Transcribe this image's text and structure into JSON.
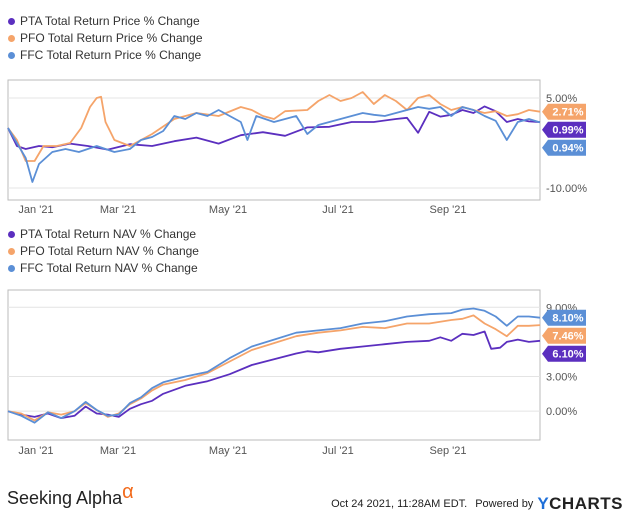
{
  "footer": {
    "brand": "Seeking Alpha",
    "brand_symbol": "α",
    "timestamp": "Oct 24 2021, 11:28AM EDT.",
    "powered_by": "Powered by",
    "provider_y": "Y",
    "provider_rest": "CHARTS"
  },
  "colors": {
    "PTA": "#5b2fbf",
    "PFO": "#f5a46a",
    "FFC": "#5b8fd6"
  },
  "chart_data": [
    {
      "type": "line",
      "legend_placement": "top-left",
      "grid": "horizontal",
      "x_ticks": [
        "Jan '21",
        "Mar '21",
        "May '21",
        "Jul '21",
        "Sep '21"
      ],
      "y_ticks": [
        "5.00%",
        "-10.00%"
      ],
      "ylim": [
        -12,
        8
      ],
      "end_labels": [
        "2.71%",
        "0.99%",
        "0.94%"
      ],
      "series": [
        {
          "name": "PTA Total Return Price % Change",
          "key": "PTA",
          "end_value": 0.99,
          "points": [
            [
              0,
              0
            ],
            [
              4,
              -3
            ],
            [
              8,
              -3.5
            ],
            [
              14,
              -3
            ],
            [
              20,
              -3.2
            ],
            [
              28,
              -2.6
            ],
            [
              36,
              -3
            ],
            [
              45,
              -3.6
            ],
            [
              55,
              -2.7
            ],
            [
              65,
              -3
            ],
            [
              75,
              -2.2
            ],
            [
              85,
              -1.6
            ],
            [
              95,
              -2.6
            ],
            [
              105,
              -1.2
            ],
            [
              115,
              -0.7
            ],
            [
              125,
              -1.3
            ],
            [
              135,
              0.1
            ],
            [
              145,
              0.2
            ],
            [
              155,
              1
            ],
            [
              165,
              1
            ],
            [
              175,
              1.5
            ],
            [
              180,
              1.7
            ],
            [
              185,
              -0.8
            ],
            [
              190,
              2.7
            ],
            [
              195,
              1.9
            ],
            [
              200,
              2.2
            ],
            [
              205,
              3
            ],
            [
              210,
              2.5
            ],
            [
              215,
              3.6
            ],
            [
              220,
              2.8
            ],
            [
              225,
              1
            ],
            [
              230,
              1.5
            ],
            [
              235,
              1.1
            ],
            [
              240,
              0.99
            ]
          ]
        },
        {
          "name": "PFO Total Return Price % Change",
          "key": "PFO",
          "end_value": 2.71,
          "points": [
            [
              0,
              0
            ],
            [
              4,
              -2
            ],
            [
              8,
              -5.5
            ],
            [
              12,
              -5.5
            ],
            [
              16,
              -3
            ],
            [
              22,
              -3
            ],
            [
              28,
              -2.5
            ],
            [
              33,
              0
            ],
            [
              37,
              3.5
            ],
            [
              40,
              5
            ],
            [
              42,
              5.2
            ],
            [
              44,
              1
            ],
            [
              46,
              -0.5
            ],
            [
              48,
              -2
            ],
            [
              55,
              -3
            ],
            [
              65,
              -1
            ],
            [
              75,
              1.5
            ],
            [
              85,
              2.5
            ],
            [
              95,
              2
            ],
            [
              105,
              3.5
            ],
            [
              110,
              3
            ],
            [
              115,
              2
            ],
            [
              120,
              1.5
            ],
            [
              125,
              2.8
            ],
            [
              135,
              3
            ],
            [
              140,
              4.5
            ],
            [
              145,
              5.5
            ],
            [
              150,
              4.5
            ],
            [
              155,
              5
            ],
            [
              160,
              6
            ],
            [
              165,
              4
            ],
            [
              170,
              5.5
            ],
            [
              175,
              4.5
            ],
            [
              180,
              3
            ],
            [
              185,
              5
            ],
            [
              190,
              5.5
            ],
            [
              195,
              4
            ],
            [
              200,
              3
            ],
            [
              205,
              3.5
            ],
            [
              210,
              3
            ],
            [
              215,
              2.5
            ],
            [
              220,
              2.8
            ],
            [
              225,
              2
            ],
            [
              230,
              2.3
            ],
            [
              235,
              3
            ],
            [
              240,
              2.71
            ]
          ]
        },
        {
          "name": "FFC Total Return Price % Change",
          "key": "FFC",
          "end_value": 0.94,
          "points": [
            [
              0,
              0
            ],
            [
              4,
              -2.5
            ],
            [
              8,
              -5
            ],
            [
              11,
              -9
            ],
            [
              14,
              -6
            ],
            [
              20,
              -4
            ],
            [
              26,
              -3.5
            ],
            [
              32,
              -4
            ],
            [
              40,
              -3
            ],
            [
              48,
              -4
            ],
            [
              55,
              -3.5
            ],
            [
              60,
              -2
            ],
            [
              65,
              -1.5
            ],
            [
              70,
              -0.5
            ],
            [
              75,
              2
            ],
            [
              80,
              1.5
            ],
            [
              85,
              2.5
            ],
            [
              90,
              2
            ],
            [
              95,
              3
            ],
            [
              100,
              2
            ],
            [
              105,
              1
            ],
            [
              108,
              -2
            ],
            [
              112,
              2
            ],
            [
              120,
              1
            ],
            [
              125,
              1.5
            ],
            [
              130,
              2
            ],
            [
              135,
              -1
            ],
            [
              140,
              0.5
            ],
            [
              145,
              1
            ],
            [
              150,
              1.5
            ],
            [
              155,
              2
            ],
            [
              160,
              2.5
            ],
            [
              165,
              2.2
            ],
            [
              170,
              2
            ],
            [
              175,
              2.5
            ],
            [
              180,
              3
            ],
            [
              185,
              3.5
            ],
            [
              190,
              3.2
            ],
            [
              195,
              3.5
            ],
            [
              200,
              2
            ],
            [
              205,
              3.5
            ],
            [
              210,
              3
            ],
            [
              215,
              2
            ],
            [
              220,
              1.2
            ],
            [
              225,
              -2
            ],
            [
              230,
              1
            ],
            [
              235,
              1.5
            ],
            [
              240,
              0.94
            ]
          ]
        }
      ]
    },
    {
      "type": "line",
      "legend_placement": "top-left",
      "grid": "horizontal",
      "x_ticks": [
        "Jan '21",
        "Mar '21",
        "May '21",
        "Jul '21",
        "Sep '21"
      ],
      "y_ticks": [
        "9.00%",
        "3.00%",
        "0.00%"
      ],
      "ylim": [
        -2.5,
        10.5
      ],
      "end_labels": [
        "8.10%",
        "7.46%",
        "6.10%"
      ],
      "series": [
        {
          "name": "PTA Total Return NAV % Change",
          "key": "PTA",
          "end_value": 6.1,
          "points": [
            [
              0,
              0
            ],
            [
              6,
              -0.3
            ],
            [
              12,
              -0.5
            ],
            [
              18,
              -0.2
            ],
            [
              24,
              -0.6
            ],
            [
              30,
              -0.4
            ],
            [
              35,
              0.4
            ],
            [
              40,
              -0.2
            ],
            [
              45,
              -0.3
            ],
            [
              50,
              -0.5
            ],
            [
              55,
              0.2
            ],
            [
              60,
              0.6
            ],
            [
              65,
              0.9
            ],
            [
              70,
              1.5
            ],
            [
              80,
              2.2
            ],
            [
              90,
              2.6
            ],
            [
              100,
              3.2
            ],
            [
              110,
              4
            ],
            [
              120,
              4.5
            ],
            [
              130,
              5
            ],
            [
              135,
              5.2
            ],
            [
              140,
              5.1
            ],
            [
              150,
              5.4
            ],
            [
              160,
              5.6
            ],
            [
              170,
              5.8
            ],
            [
              180,
              6
            ],
            [
              190,
              6.1
            ],
            [
              195,
              6.4
            ],
            [
              200,
              6.1
            ],
            [
              205,
              6.7
            ],
            [
              210,
              6.6
            ],
            [
              215,
              6.9
            ],
            [
              218,
              5.4
            ],
            [
              222,
              5.5
            ],
            [
              225,
              6
            ],
            [
              230,
              6.2
            ],
            [
              235,
              6
            ],
            [
              240,
              6.1
            ]
          ]
        },
        {
          "name": "PFO Total Return NAV % Change",
          "key": "PFO",
          "end_value": 7.46,
          "points": [
            [
              0,
              0
            ],
            [
              6,
              -0.2
            ],
            [
              12,
              -0.8
            ],
            [
              18,
              -0.1
            ],
            [
              24,
              -0.3
            ],
            [
              30,
              0
            ],
            [
              35,
              0.7
            ],
            [
              40,
              0.1
            ],
            [
              45,
              -0.5
            ],
            [
              50,
              -0.2
            ],
            [
              55,
              0.6
            ],
            [
              60,
              1.1
            ],
            [
              65,
              1.8
            ],
            [
              70,
              2.3
            ],
            [
              80,
              2.7
            ],
            [
              90,
              3.3
            ],
            [
              100,
              4.3
            ],
            [
              110,
              5.3
            ],
            [
              120,
              5.9
            ],
            [
              130,
              6.5
            ],
            [
              140,
              6.8
            ],
            [
              150,
              7
            ],
            [
              160,
              7.3
            ],
            [
              170,
              7.2
            ],
            [
              180,
              7.6
            ],
            [
              190,
              7.6
            ],
            [
              200,
              7.9
            ],
            [
              205,
              8
            ],
            [
              210,
              8.3
            ],
            [
              215,
              7.6
            ],
            [
              220,
              7.1
            ],
            [
              225,
              6.5
            ],
            [
              230,
              7.4
            ],
            [
              235,
              7.4
            ],
            [
              240,
              7.46
            ]
          ]
        },
        {
          "name": "FFC Total Return NAV % Change",
          "key": "FFC",
          "end_value": 8.1,
          "points": [
            [
              0,
              0
            ],
            [
              6,
              -0.4
            ],
            [
              12,
              -1
            ],
            [
              18,
              -0.1
            ],
            [
              24,
              -0.6
            ],
            [
              30,
              0
            ],
            [
              35,
              0.8
            ],
            [
              40,
              0.1
            ],
            [
              45,
              -0.4
            ],
            [
              50,
              -0.3
            ],
            [
              55,
              0.7
            ],
            [
              60,
              1.2
            ],
            [
              65,
              2
            ],
            [
              70,
              2.5
            ],
            [
              80,
              3
            ],
            [
              90,
              3.4
            ],
            [
              100,
              4.6
            ],
            [
              110,
              5.6
            ],
            [
              120,
              6.2
            ],
            [
              130,
              6.8
            ],
            [
              140,
              7
            ],
            [
              150,
              7.2
            ],
            [
              160,
              7.6
            ],
            [
              170,
              7.8
            ],
            [
              180,
              8.2
            ],
            [
              190,
              8.4
            ],
            [
              200,
              8.5
            ],
            [
              205,
              8.8
            ],
            [
              210,
              8.9
            ],
            [
              215,
              8.7
            ],
            [
              220,
              8.2
            ],
            [
              225,
              7.4
            ],
            [
              230,
              8.2
            ],
            [
              235,
              8.2
            ],
            [
              240,
              8.1
            ]
          ]
        }
      ]
    }
  ]
}
